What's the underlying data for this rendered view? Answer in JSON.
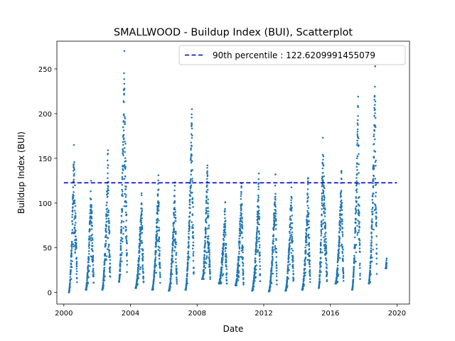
{
  "chart_data": {
    "type": "scatter",
    "title": "SMALLWOOD - Buildup Index (BUI), Scatterplot",
    "xlabel": "Date",
    "ylabel": "Buildup Index (BUI)",
    "xlim": [
      "1999-08-01",
      "2020-10-01"
    ],
    "ylim": [
      -13,
      281
    ],
    "x_ticks": [
      "2000",
      "2004",
      "2008",
      "2012",
      "2016",
      "2020"
    ],
    "y_ticks": [
      0,
      50,
      100,
      150,
      200,
      250
    ],
    "grid": false,
    "legend": {
      "placement": "upper right",
      "entries": [
        "90th percentile : 122.6209991455079"
      ]
    },
    "reference_lines": [
      {
        "label": "90th percentile : 122.6209991455079",
        "y": 122.6209991455079,
        "x_range": [
          "2000-01-01",
          "2019-12-31"
        ],
        "style": "dashed",
        "color": "#0000cc"
      }
    ],
    "series_color": "#1f77b4",
    "seasons": [
      {
        "start": "2000-04-20",
        "end": "2000-10-15",
        "peak_date": "2000-08-10",
        "peak": 165,
        "min": 0
      },
      {
        "start": "2001-04-25",
        "end": "2001-10-15",
        "peak_date": "2001-08-20",
        "peak": 125,
        "min": 3
      },
      {
        "start": "2002-04-20",
        "end": "2002-10-15",
        "peak_date": "2002-08-25",
        "peak": 159,
        "min": 3
      },
      {
        "start": "2003-04-20",
        "end": "2003-10-20",
        "peak_date": "2003-08-20",
        "peak": 270,
        "min": 12
      },
      {
        "start": "2004-04-20",
        "end": "2004-10-15",
        "peak_date": "2004-09-01",
        "peak": 111,
        "min": 5
      },
      {
        "start": "2005-04-20",
        "end": "2005-10-15",
        "peak_date": "2005-09-05",
        "peak": 131,
        "min": 3
      },
      {
        "start": "2006-04-20",
        "end": "2006-10-15",
        "peak_date": "2006-09-01",
        "peak": 123,
        "min": 2
      },
      {
        "start": "2007-04-20",
        "end": "2007-10-20",
        "peak_date": "2007-09-10",
        "peak": 205,
        "min": 3
      },
      {
        "start": "2008-04-20",
        "end": "2008-10-15",
        "peak_date": "2008-08-15",
        "peak": 142,
        "min": 15
      },
      {
        "start": "2009-04-20",
        "end": "2009-10-15",
        "peak_date": "2009-09-10",
        "peak": 101,
        "min": 10
      },
      {
        "start": "2010-04-20",
        "end": "2010-10-15",
        "peak_date": "2010-09-01",
        "peak": 122,
        "min": 8
      },
      {
        "start": "2011-04-20",
        "end": "2011-10-15",
        "peak_date": "2011-09-15",
        "peak": 133,
        "min": 2
      },
      {
        "start": "2012-04-20",
        "end": "2012-10-15",
        "peak_date": "2012-09-15",
        "peak": 132,
        "min": 1
      },
      {
        "start": "2013-04-20",
        "end": "2013-10-15",
        "peak_date": "2013-09-01",
        "peak": 123,
        "min": 2
      },
      {
        "start": "2014-04-20",
        "end": "2014-10-15",
        "peak_date": "2014-09-01",
        "peak": 128,
        "min": 3
      },
      {
        "start": "2015-04-20",
        "end": "2015-10-20",
        "peak_date": "2015-07-20",
        "peak": 173,
        "min": 5
      },
      {
        "start": "2016-04-20",
        "end": "2016-10-15",
        "peak_date": "2016-09-01",
        "peak": 136,
        "min": 10
      },
      {
        "start": "2017-04-20",
        "end": "2017-10-15",
        "peak_date": "2017-09-01",
        "peak": 219,
        "min": 3
      },
      {
        "start": "2018-04-20",
        "end": "2018-10-15",
        "peak_date": "2018-09-10",
        "peak": 253,
        "min": 10
      },
      {
        "start": "2019-04-25",
        "end": "2019-05-20",
        "peak_date": "2019-05-20",
        "peak": 38,
        "min": 27
      }
    ]
  }
}
